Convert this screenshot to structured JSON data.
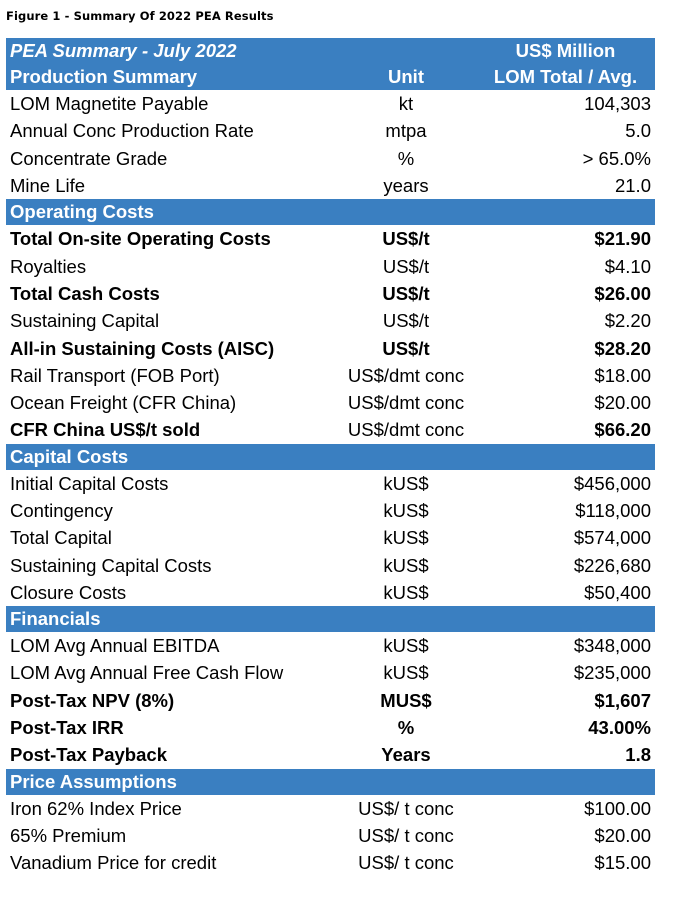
{
  "figure_title": "Figure 1 - Summary Of 2022 PEA Results",
  "header": {
    "title": "PEA Summary - July 2022",
    "currency": "US$ Million",
    "section": "Production Summary",
    "unit_label": "Unit",
    "value_label": "LOM Total / Avg."
  },
  "colors": {
    "header_bg": "#3a7fc1",
    "header_text": "#ffffff"
  },
  "production": [
    {
      "label": "LOM Magnetite Payable",
      "unit": "kt",
      "value": "104,303",
      "bold": false
    },
    {
      "label": "Annual Conc Production Rate",
      "unit": "mtpa",
      "value": "5.0",
      "bold": false
    },
    {
      "label": "Concentrate Grade",
      "unit": "%",
      "value": "> 65.0%",
      "bold": false
    },
    {
      "label": "Mine Life",
      "unit": "years",
      "value": "21.0",
      "bold": false
    }
  ],
  "operating_costs": {
    "title": "Operating Costs",
    "rows": [
      {
        "label": "Total On-site Operating Costs",
        "unit": "US$/t",
        "value": "$21.90",
        "bold": true
      },
      {
        "label": "Royalties",
        "unit": "US$/t",
        "value": "$4.10",
        "bold": false
      },
      {
        "label": "Total Cash Costs",
        "unit": "US$/t",
        "value": "$26.00",
        "bold": true
      },
      {
        "label": "Sustaining Capital",
        "unit": "US$/t",
        "value": "$2.20",
        "bold": false
      },
      {
        "label": "All-in Sustaining Costs (AISC)",
        "unit": "US$/t",
        "value": "$28.20",
        "bold": true
      },
      {
        "label": "Rail Transport (FOB Port)",
        "unit": "US$/dmt conc",
        "value": "$18.00",
        "bold": false
      },
      {
        "label": "Ocean Freight (CFR China)",
        "unit": "US$/dmt conc",
        "value": "$20.00",
        "bold": false
      },
      {
        "label": "CFR China US$/t sold",
        "unit": "US$/dmt conc",
        "value": "$66.20",
        "bold": true,
        "unit_normal": true
      }
    ]
  },
  "capital_costs": {
    "title": "Capital Costs",
    "rows": [
      {
        "label": "Initial Capital Costs",
        "unit": "kUS$",
        "value": "$456,000"
      },
      {
        "label": "Contingency",
        "unit": "kUS$",
        "value": "$118,000"
      },
      {
        "label": "Total Capital",
        "unit": "kUS$",
        "value": "$574,000"
      },
      {
        "label": "Sustaining Capital Costs",
        "unit": "kUS$",
        "value": "$226,680"
      },
      {
        "label": "Closure Costs",
        "unit": "kUS$",
        "value": "$50,400"
      }
    ]
  },
  "financials": {
    "title": "Financials",
    "rows": [
      {
        "label": "LOM Avg Annual EBITDA",
        "unit": "kUS$",
        "value": "$348,000",
        "bold": false
      },
      {
        "label": "LOM Avg Annual Free Cash Flow",
        "unit": "kUS$",
        "value": "$235,000",
        "bold": false
      },
      {
        "label": "Post-Tax NPV (8%)",
        "unit": "MUS$",
        "value": "$1,607",
        "bold": true
      },
      {
        "label": "Post-Tax IRR",
        "unit": "%",
        "value": "43.00%",
        "bold": true
      },
      {
        "label": "Post-Tax Payback",
        "unit": "Years",
        "value": "1.8",
        "bold": true
      }
    ]
  },
  "price_assumptions": {
    "title": "Price Assumptions",
    "rows": [
      {
        "label": "Iron 62% Index Price",
        "unit": "US$/ t conc",
        "value": "$100.00"
      },
      {
        "label": "65% Premium",
        "unit": "US$/ t conc",
        "value": "$20.00"
      },
      {
        "label": "Vanadium Price for credit",
        "unit": "US$/ t conc",
        "value": "$15.00"
      }
    ]
  }
}
